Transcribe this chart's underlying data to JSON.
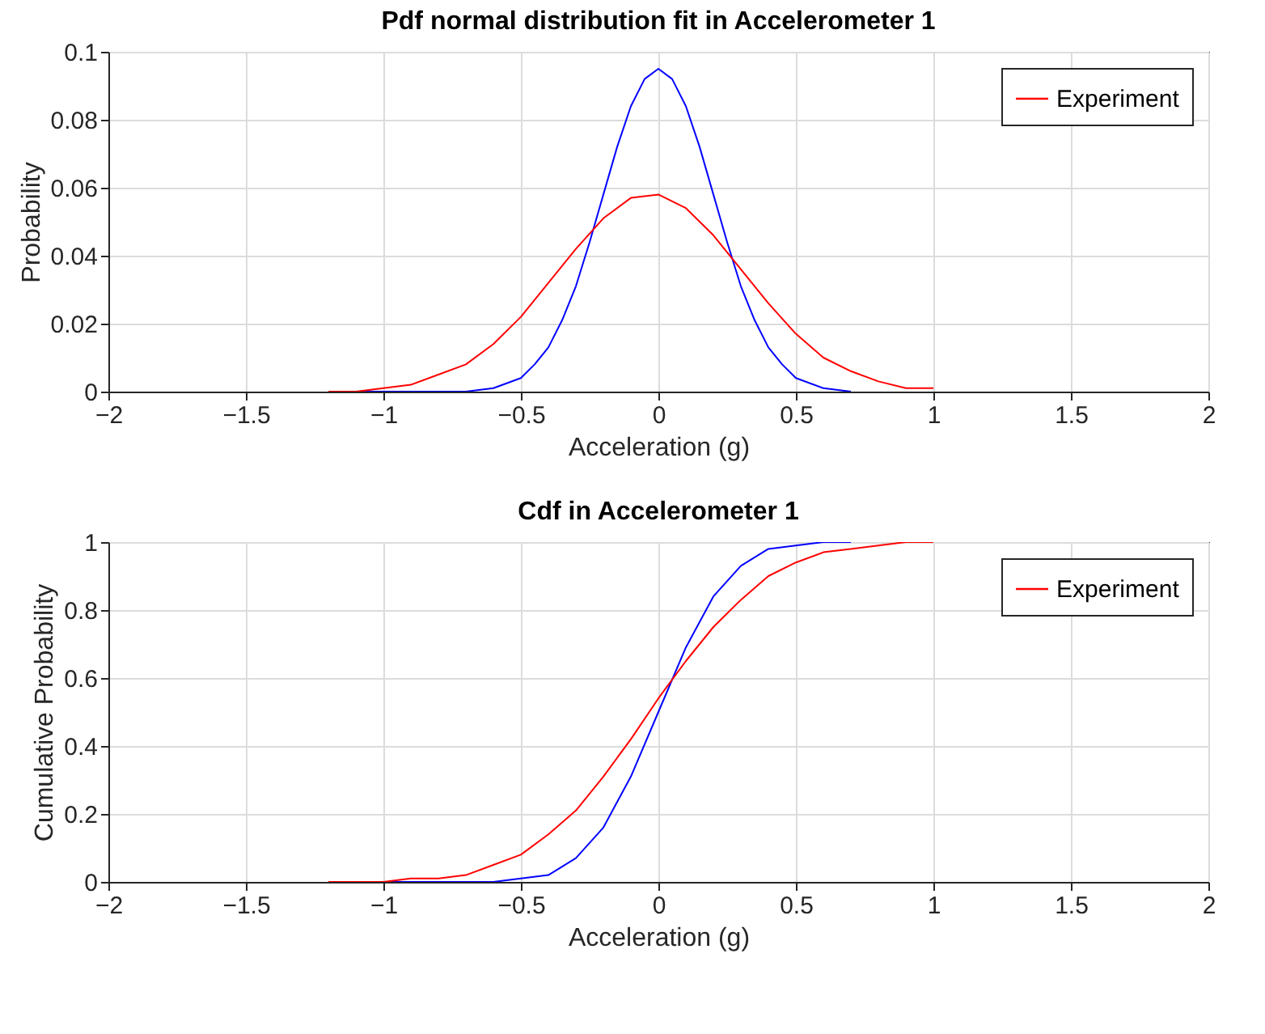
{
  "chart_data": [
    {
      "type": "line",
      "title": "Pdf normal distribution fit in Accelerometer 1",
      "xlabel": "Acceleration (g)",
      "ylabel": "Probability",
      "xlim": [
        -2,
        2
      ],
      "ylim": [
        0,
        0.1
      ],
      "xticks": [
        -2,
        -1.5,
        -1,
        -0.5,
        0,
        0.5,
        1,
        1.5,
        2
      ],
      "yticks": [
        0,
        0.02,
        0.04,
        0.06,
        0.08,
        0.1
      ],
      "grid": true,
      "legend": "top right",
      "series": [
        {
          "color": "#0000ff",
          "x": [
            -1.1,
            -0.8,
            -0.7,
            -0.6,
            -0.5,
            -0.45,
            -0.4,
            -0.35,
            -0.3,
            -0.25,
            -0.2,
            -0.15,
            -0.1,
            -0.05,
            0,
            0.05,
            0.1,
            0.15,
            0.2,
            0.25,
            0.3,
            0.35,
            0.4,
            0.45,
            0.5,
            0.6,
            0.7
          ],
          "values": [
            0,
            0,
            0,
            0.001,
            0.004,
            0.008,
            0.013,
            0.021,
            0.031,
            0.044,
            0.058,
            0.072,
            0.084,
            0.092,
            0.095,
            0.092,
            0.084,
            0.072,
            0.058,
            0.044,
            0.031,
            0.021,
            0.013,
            0.008,
            0.004,
            0.001,
            0
          ]
        },
        {
          "name": "Experiment",
          "color": "#ff0000",
          "x": [
            -1.2,
            -1.1,
            -1,
            -0.9,
            -0.8,
            -0.7,
            -0.6,
            -0.5,
            -0.4,
            -0.3,
            -0.2,
            -0.1,
            0,
            0.1,
            0.2,
            0.3,
            0.4,
            0.5,
            0.6,
            0.7,
            0.8,
            0.9,
            1
          ],
          "values": [
            0,
            0,
            0.001,
            0.002,
            0.005,
            0.008,
            0.014,
            0.022,
            0.032,
            0.042,
            0.051,
            0.057,
            0.058,
            0.054,
            0.046,
            0.036,
            0.026,
            0.017,
            0.01,
            0.006,
            0.003,
            0.001,
            0.001
          ]
        }
      ]
    },
    {
      "type": "line",
      "title": "Cdf in Accelerometer 1",
      "xlabel": "Acceleration (g)",
      "ylabel": "Cumulative Probability",
      "xlim": [
        -2,
        2
      ],
      "ylim": [
        0,
        1
      ],
      "xticks": [
        -2,
        -1.5,
        -1,
        -0.5,
        0,
        0.5,
        1,
        1.5,
        2
      ],
      "yticks": [
        0,
        0.2,
        0.4,
        0.6,
        0.8,
        1
      ],
      "grid": true,
      "legend": "top right",
      "series": [
        {
          "color": "#0000ff",
          "x": [
            -1.1,
            -0.8,
            -0.7,
            -0.6,
            -0.5,
            -0.4,
            -0.3,
            -0.2,
            -0.1,
            0,
            0.1,
            0.2,
            0.3,
            0.4,
            0.5,
            0.6,
            0.7
          ],
          "values": [
            0,
            0,
            0,
            0,
            0.01,
            0.02,
            0.07,
            0.16,
            0.31,
            0.5,
            0.69,
            0.84,
            0.93,
            0.98,
            0.99,
            1,
            1
          ]
        },
        {
          "name": "Experiment",
          "color": "#ff0000",
          "x": [
            -1.2,
            -1.1,
            -1,
            -0.9,
            -0.8,
            -0.7,
            -0.6,
            -0.5,
            -0.4,
            -0.3,
            -0.2,
            -0.1,
            0,
            0.1,
            0.2,
            0.3,
            0.4,
            0.5,
            0.6,
            0.7,
            0.8,
            0.9,
            1
          ],
          "values": [
            0,
            0,
            0,
            0.01,
            0.01,
            0.02,
            0.05,
            0.08,
            0.14,
            0.21,
            0.31,
            0.42,
            0.54,
            0.65,
            0.75,
            0.83,
            0.9,
            0.94,
            0.97,
            0.98,
            0.99,
            1,
            1
          ]
        }
      ]
    }
  ]
}
